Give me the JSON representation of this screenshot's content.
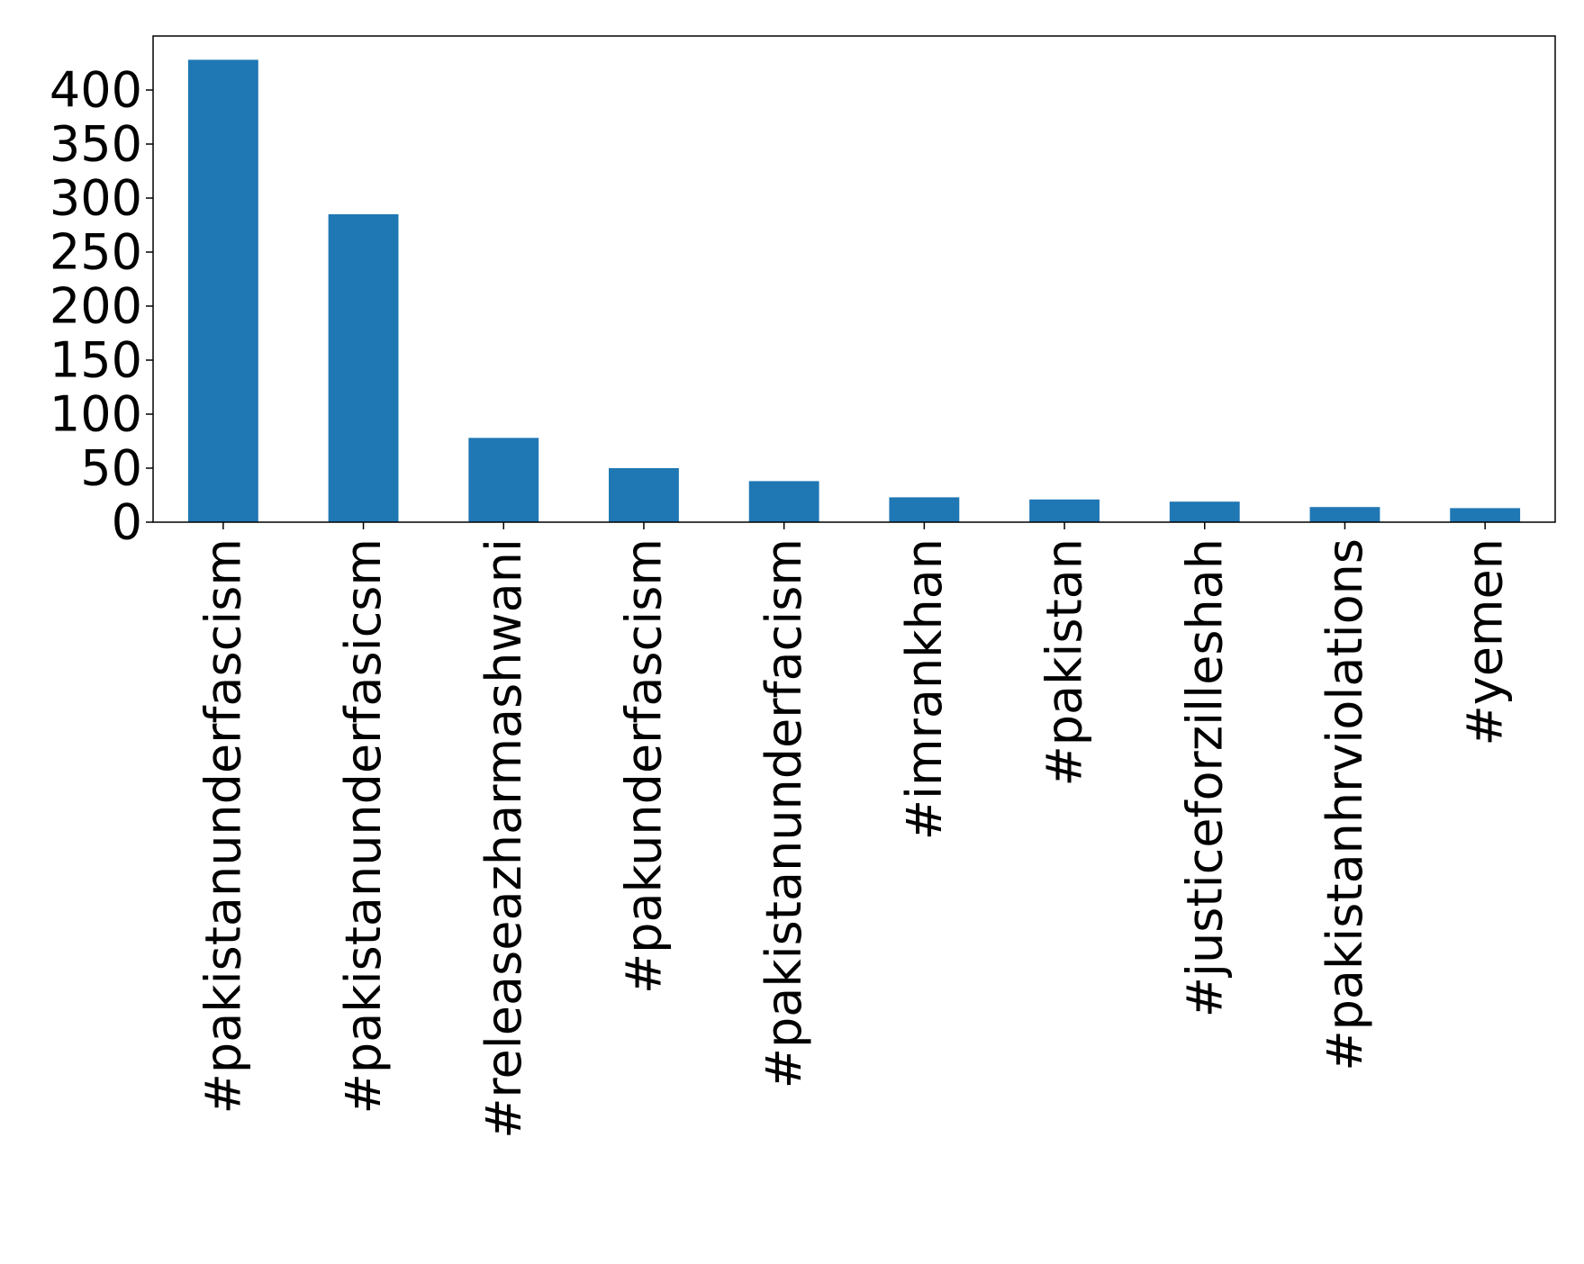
{
  "chart_data": {
    "type": "bar",
    "title": "",
    "xlabel": "",
    "ylabel": "",
    "categories": [
      "#pakistanunderfascism",
      "#pakistanunderfasicsm",
      "#releaseazharmashwani",
      "#pakunderfascism",
      "#pakistanunderfacism",
      "#imrankhan",
      "#pakistan",
      "#justiceforzilleshah",
      "#pakistanhrviolations",
      "#yemen"
    ],
    "values": [
      428,
      285,
      78,
      50,
      38,
      23,
      21,
      19,
      14,
      13
    ],
    "ylim": [
      0,
      450
    ],
    "yticks": [
      0,
      50,
      100,
      150,
      200,
      250,
      300,
      350,
      400
    ],
    "grid": false,
    "legend": "none",
    "colors": {
      "bar": "#1f77b4",
      "axis": "#000000",
      "background": "#ffffff"
    }
  }
}
